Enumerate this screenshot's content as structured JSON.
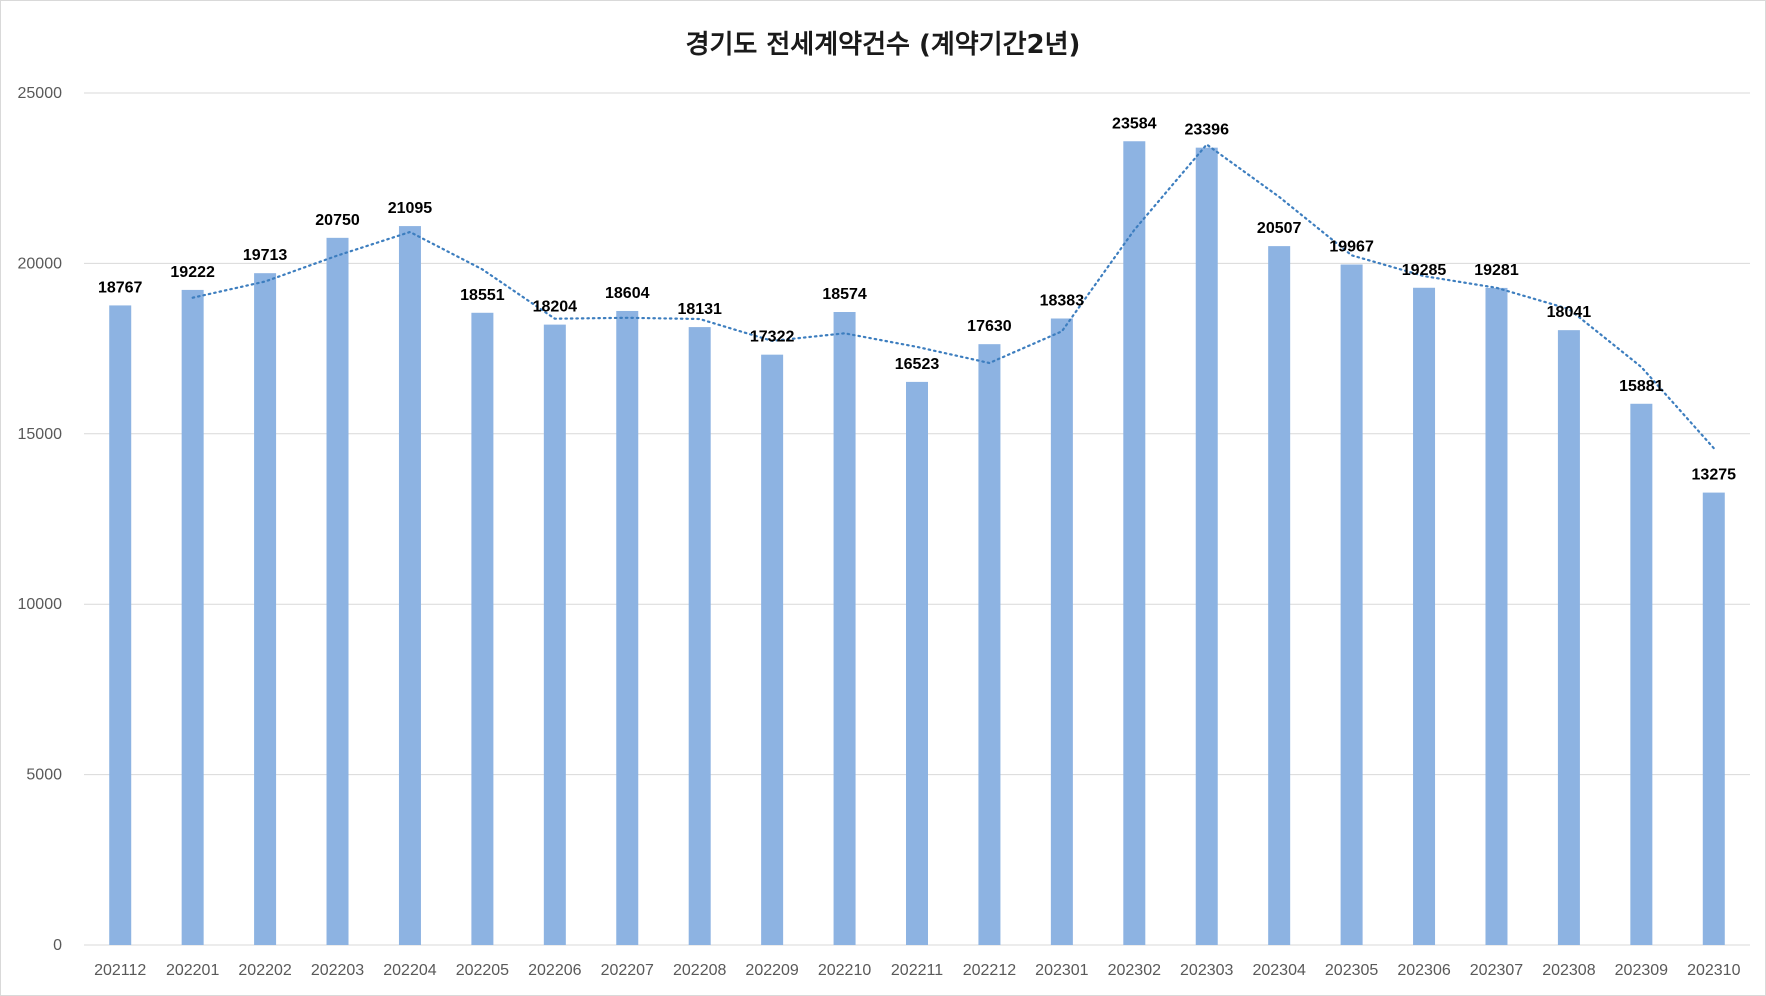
{
  "chart_data": {
    "type": "bar",
    "title": "경기도 전세계약건수 (계약기간2년)",
    "xlabel": "",
    "ylabel": "",
    "ylim": [
      0,
      25000
    ],
    "yticks": [
      0,
      5000,
      10000,
      15000,
      20000,
      25000
    ],
    "grid": true,
    "legend": "none",
    "bar_color": "#8db3e2",
    "grid_color": "#d9d9d9",
    "trendline": {
      "style": "dotted",
      "color": "#3d7ebf",
      "type": "moving-average",
      "period": 2
    },
    "categories": [
      "202112",
      "202201",
      "202202",
      "202203",
      "202204",
      "202205",
      "202206",
      "202207",
      "202208",
      "202209",
      "202210",
      "202211",
      "202212",
      "202301",
      "202302",
      "202303",
      "202304",
      "202305",
      "202306",
      "202307",
      "202308",
      "202309",
      "202310"
    ],
    "values": [
      18767,
      19222,
      19713,
      20750,
      21095,
      18551,
      18204,
      18604,
      18131,
      17322,
      18574,
      16523,
      17630,
      18383,
      23584,
      23396,
      20507,
      19967,
      19285,
      19281,
      18041,
      15881,
      13275
    ]
  }
}
